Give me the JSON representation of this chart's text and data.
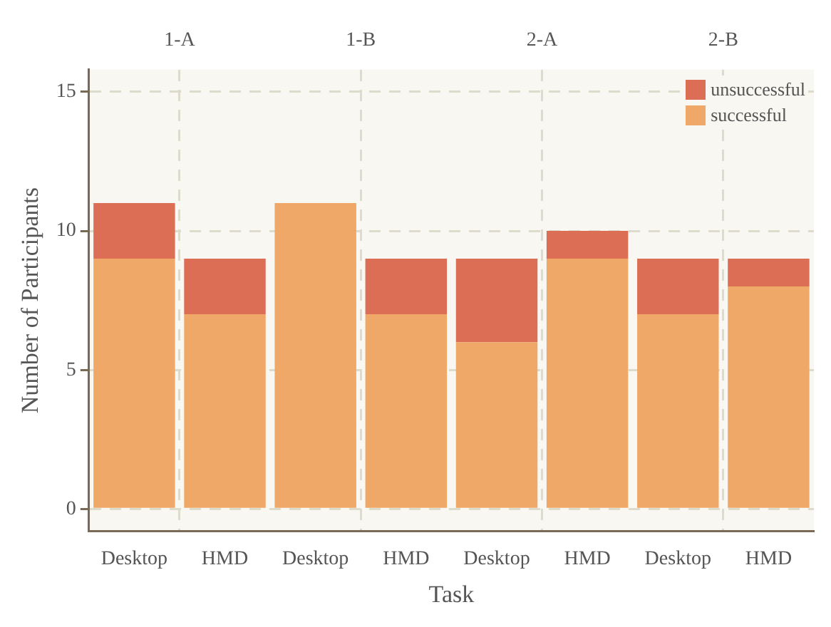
{
  "chart_data": {
    "type": "bar",
    "stacked": true,
    "xlabel": "Task",
    "ylabel": "Number of Participants",
    "categories": [
      "Desktop",
      "HMD",
      "Desktop",
      "HMD",
      "Desktop",
      "HMD",
      "Desktop",
      "HMD"
    ],
    "annotations": [
      "1-A",
      "1-B",
      "2-A",
      "2-B"
    ],
    "series": [
      {
        "name": "successful",
        "color": "#f0a868",
        "values": [
          9,
          7,
          11,
          7,
          6,
          9,
          7,
          8
        ]
      },
      {
        "name": "unsuccessful",
        "color": "#dc6e55",
        "values": [
          2,
          2,
          0,
          2,
          3,
          1,
          2,
          1
        ]
      }
    ],
    "ylim": [
      -0.8,
      15.8
    ],
    "yticks": [
      0,
      5,
      10,
      15
    ],
    "grid": true,
    "legend": "top right"
  }
}
